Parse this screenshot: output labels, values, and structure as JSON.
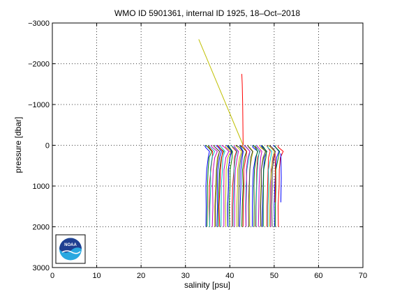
{
  "chart_data": {
    "type": "line",
    "title": "WMO ID 5901361, internal ID 1925, 18–Oct–2018",
    "xlabel": "salinity [psu]",
    "ylabel": "pressure [dbar]",
    "xlim": [
      0,
      70
    ],
    "ylim": [
      3000,
      -3000
    ],
    "y_reversed": true,
    "grid": true,
    "grid_style": "dotted",
    "x_ticks": [
      0,
      10,
      20,
      30,
      40,
      50,
      60,
      70
    ],
    "y_ticks": [
      -3000,
      -2000,
      -1000,
      0,
      1000,
      2000,
      3000
    ],
    "x_tick_labels": [
      "0",
      "10",
      "20",
      "30",
      "40",
      "50",
      "60",
      "70"
    ],
    "y_tick_labels": [
      "−3000",
      "−2000",
      "−1000",
      "0",
      "1000",
      "2000",
      "3000"
    ],
    "profile_colors": [
      "#0000ff",
      "#008000",
      "#ff0000",
      "#00bfbf",
      "#bf00bf",
      "#bfbf00",
      "#404040"
    ],
    "profiles_count": 45,
    "profiles_salinity_range": [
      34.8,
      52.5
    ],
    "profiles_pressure_range": [
      0,
      2000
    ],
    "series": [
      {
        "color": "#bfbf00",
        "x": [
          33.0,
          43.0
        ],
        "y": [
          -2600,
          0
        ]
      },
      {
        "color": "#ff0000",
        "x": [
          42.7,
          42.8,
          42.9,
          43.0
        ],
        "y": [
          -1750,
          -1500,
          -1000,
          0
        ]
      },
      {
        "color": "#ff0000",
        "x": [
          50.2,
          50.3,
          50.2
        ],
        "y": [
          200,
          900,
          1400
        ]
      },
      {
        "color": "#0000ff",
        "x": [
          51.5,
          51.6,
          51.5
        ],
        "y": [
          200,
          800,
          1400
        ]
      }
    ]
  },
  "logo": {
    "text": "NOAA",
    "name": "noaa-logo",
    "color_sky": "#1f3f91",
    "color_sea": "#29a8e0"
  }
}
